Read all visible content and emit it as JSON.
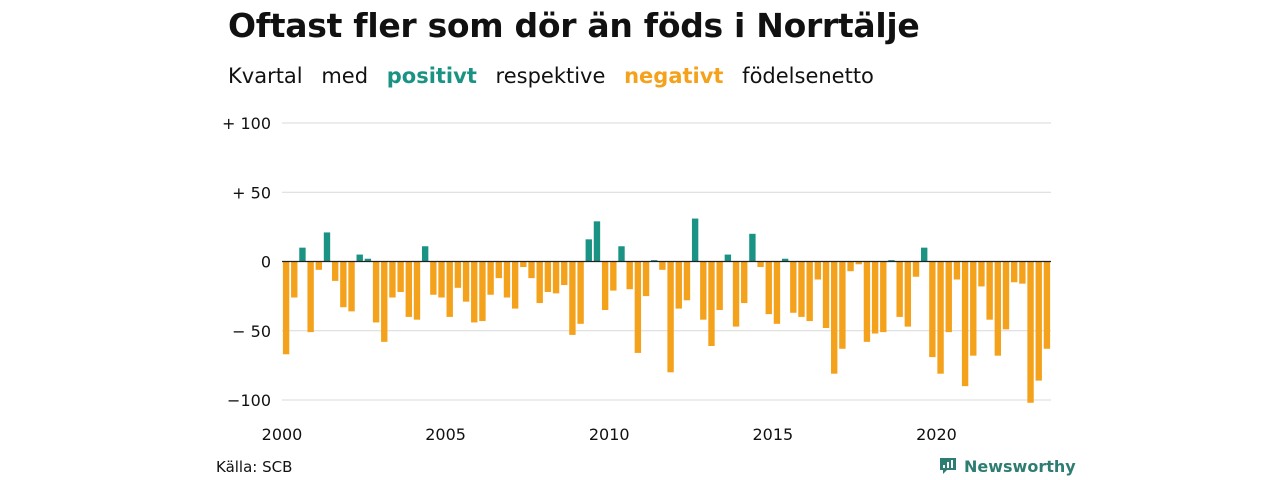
{
  "title": "Oftast fler som dör än föds i Norrtälje",
  "subtitle": {
    "part1": "Kvartal",
    "part2": "med",
    "positive": "positivt",
    "part3": "respektive",
    "negative": "negativt",
    "part4": "födelsenetto"
  },
  "source": "Källa: SCB",
  "brand": {
    "name": "Newsworthy",
    "logo_icon": "newsworthy-logo-icon"
  },
  "colors": {
    "positive": "#1a9385",
    "negative": "#f4a11c",
    "grid": "#d9d9d9",
    "zero": "#222222"
  },
  "chart_data": {
    "type": "bar",
    "ylim": [
      -100,
      100
    ],
    "yticks": [
      100,
      50,
      0,
      -50,
      -100
    ],
    "ytick_labels": [
      "+ 100",
      "+  50",
      "0",
      "− 50",
      "−100"
    ],
    "x_start_year": 2000,
    "xtick_labels": [
      "2000",
      "2005",
      "2010",
      "2015",
      "2020"
    ],
    "xtick_years": [
      2000,
      2005,
      2010,
      2015,
      2020
    ],
    "grid": true,
    "legend": "none",
    "values": [
      -67,
      -26,
      10,
      -51,
      -6,
      21,
      -14,
      -33,
      -36,
      5,
      2,
      -44,
      -58,
      -26,
      -22,
      -40,
      -42,
      11,
      -24,
      -26,
      -40,
      -19,
      -29,
      -44,
      -43,
      -24,
      -12,
      -26,
      -34,
      -4,
      -12,
      -30,
      -22,
      -23,
      -17,
      -53,
      -45,
      16,
      29,
      -35,
      -21,
      11,
      -20,
      -66,
      -25,
      1,
      -6,
      -80,
      -34,
      -28,
      31,
      -42,
      -61,
      -35,
      5,
      -47,
      -30,
      20,
      -4,
      -38,
      -45,
      2,
      -37,
      -40,
      -43,
      -13,
      -48,
      -81,
      -63,
      -7,
      -2,
      -58,
      -52,
      -51,
      1,
      -40,
      -47,
      -11,
      10,
      -69,
      -81,
      -51,
      -13,
      -90,
      -68,
      -18,
      -42,
      -68,
      -49,
      -15,
      -16,
      -102,
      -86,
      -63
    ]
  }
}
